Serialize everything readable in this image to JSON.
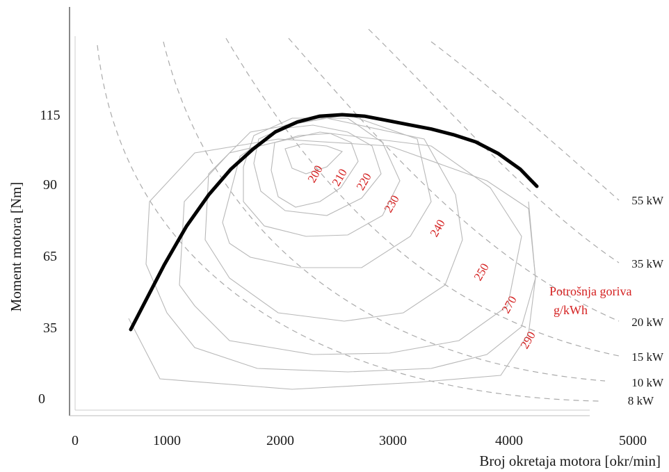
{
  "chart_data": {
    "type": "line",
    "title": "",
    "xlabel": "Broj okretaja motora [okr/min]",
    "ylabel": "Moment motora [Nm]",
    "x_ticks": [
      "0",
      "1000",
      "2000",
      "3000",
      "4000",
      "5000"
    ],
    "y_ticks": [
      "0",
      "35",
      "65",
      "90",
      "115"
    ],
    "grid": false,
    "torque_curve": {
      "x": [
        500,
        800,
        1000,
        1200,
        1400,
        1600,
        1800,
        2000,
        2200,
        2400,
        2600,
        2800,
        3000,
        3200,
        3400,
        3600,
        3800,
        4000,
        4150
      ],
      "y": [
        35,
        62,
        76,
        87,
        96,
        103,
        109,
        112.5,
        114.5,
        115,
        114.5,
        113,
        111.5,
        110,
        108,
        105.5,
        101.5,
        96,
        90
      ]
    },
    "power_lines": [
      {
        "label": "55 kW"
      },
      {
        "label": "35 kW"
      },
      {
        "label": "20 kW"
      },
      {
        "label": "15 kW"
      },
      {
        "label": "10 kW"
      },
      {
        "label": "8 kW"
      }
    ],
    "fuel_consumption": {
      "title_line1": "Potrošnja goriva",
      "title_line2": "g/kWh",
      "color": "#d42020",
      "contours": [
        {
          "label": "200"
        },
        {
          "label": "210"
        },
        {
          "label": "220"
        },
        {
          "label": "230"
        },
        {
          "label": "240"
        },
        {
          "label": "250"
        },
        {
          "label": "270"
        },
        {
          "label": "290"
        }
      ]
    }
  }
}
